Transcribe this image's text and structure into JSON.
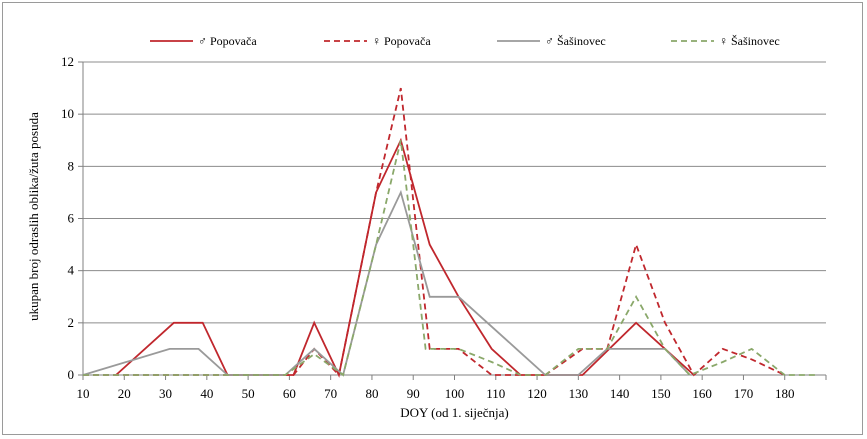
{
  "chart_data": {
    "type": "line",
    "xlabel": "DOY (od 1. siječnja)",
    "ylabel": "ukupan broj odraslih oblika/žuta posuda",
    "xlim": [
      10,
      190
    ],
    "ylim": [
      0,
      12
    ],
    "xticks": [
      10,
      20,
      30,
      40,
      50,
      60,
      70,
      80,
      90,
      100,
      110,
      120,
      130,
      140,
      150,
      160,
      170,
      180
    ],
    "yticks": [
      0,
      2,
      4,
      6,
      8,
      10,
      12
    ],
    "grid": "horizontal",
    "legend_position": "top",
    "series": [
      {
        "name": "♂ Popovača",
        "color": "#c0272d",
        "dash": "solid",
        "x": [
          18,
          32,
          39,
          45,
          61,
          66,
          72,
          81,
          87,
          94,
          101,
          109,
          116,
          131,
          144,
          151,
          158
        ],
        "y": [
          0,
          2,
          2,
          0,
          0,
          2,
          0,
          7,
          9,
          5,
          3,
          1,
          0,
          0,
          2,
          1,
          0
        ]
      },
      {
        "name": "♀ Popovača",
        "color": "#c0272d",
        "dash": "dashed",
        "x": [
          10,
          45,
          61,
          66,
          72,
          81,
          87,
          94,
          101,
          109,
          116,
          122,
          131,
          137,
          144,
          151,
          158,
          165,
          172,
          180
        ],
        "y": [
          0,
          0,
          0,
          1,
          0,
          7,
          11,
          1,
          1,
          0,
          0,
          0,
          1,
          1,
          5,
          2,
          0,
          1,
          0.6,
          0
        ]
      },
      {
        "name": "♂ Šašinovec",
        "color": "#9a9a9a",
        "dash": "solid",
        "x": [
          10,
          31,
          38,
          45,
          59,
          66,
          73,
          81,
          87,
          94,
          101,
          115,
          122,
          130,
          137,
          151,
          157
        ],
        "y": [
          0,
          1,
          1,
          0,
          0,
          1,
          0,
          5,
          7,
          3,
          3,
          1,
          0,
          0,
          1,
          1,
          0
        ]
      },
      {
        "name": "♀ Šašinovec",
        "color": "#8aa86a",
        "dash": "dashed",
        "x": [
          10,
          45,
          59,
          66,
          73,
          81,
          87,
          93,
          101,
          109,
          116,
          122,
          130,
          137,
          144,
          151,
          157,
          165,
          172,
          180,
          188
        ],
        "y": [
          0,
          0,
          0,
          0.8,
          0,
          5,
          9,
          1,
          1,
          0.5,
          0,
          0,
          1,
          1,
          3,
          1,
          0,
          0.5,
          1,
          0,
          0
        ]
      }
    ]
  }
}
